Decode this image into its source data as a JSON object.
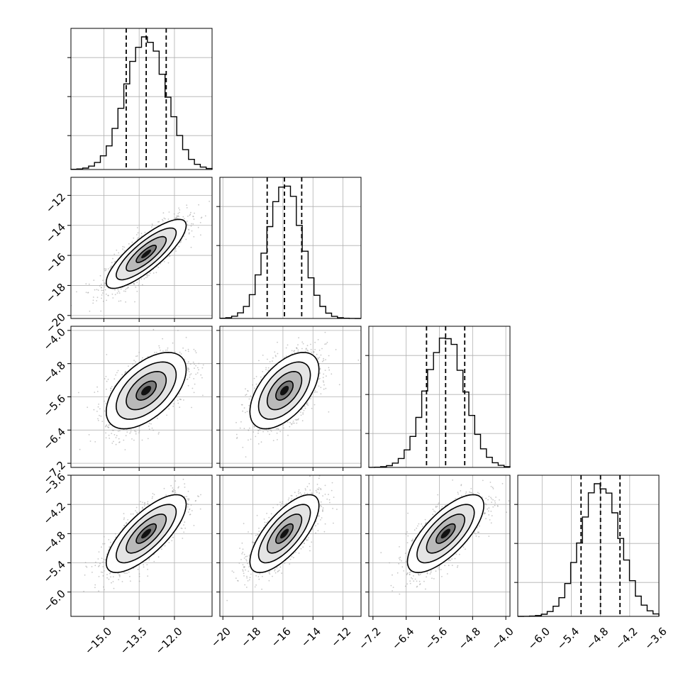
{
  "chart_data": {
    "type": "corner",
    "parameters": [
      {
        "index": 0,
        "xlim": [
          -16.4,
          -10.4
        ],
        "ticks": [
          -15.0,
          -13.5,
          -12.0
        ],
        "tick_labels": [
          "−15.0",
          "−13.5",
          "−12.0"
        ],
        "mean": -13.2,
        "sigma": 0.85,
        "quantiles": [
          -14.05,
          -13.2,
          -12.35
        ],
        "hist_bins": 24
      },
      {
        "index": 1,
        "xlim": [
          -20.2,
          -10.8
        ],
        "ticks": [
          -20,
          -18,
          -16,
          -14,
          -12
        ],
        "tick_labels": [
          "−20",
          "−18",
          "−16",
          "−14",
          "−12"
        ],
        "mean": -15.9,
        "sigma": 1.15,
        "quantiles": [
          -17.05,
          -15.9,
          -14.75
        ],
        "hist_bins": 24
      },
      {
        "index": 2,
        "xlim": [
          -7.3,
          -3.9
        ],
        "ticks": [
          -7.2,
          -6.4,
          -5.6,
          -4.8,
          -4.0
        ],
        "tick_labels": [
          "−7.2",
          "−6.4",
          "−5.6",
          "−4.8",
          "−4.0"
        ],
        "mean": -5.45,
        "sigma": 0.46,
        "quantiles": [
          -5.91,
          -5.45,
          -4.99
        ],
        "hist_bins": 24
      },
      {
        "index": 3,
        "xlim": [
          -6.5,
          -3.6
        ],
        "ticks": [
          -6.0,
          -5.4,
          -4.8,
          -4.2,
          -3.6
        ],
        "tick_labels": [
          "−6.0",
          "−5.4",
          "−4.8",
          "−4.2",
          "−3.6"
        ],
        "mean": -4.8,
        "sigma": 0.4,
        "quantiles": [
          -5.2,
          -4.8,
          -4.4
        ],
        "hist_bins": 24
      }
    ],
    "pair_correlations": [
      {
        "row": 1,
        "col": 0,
        "rho": 0.82
      },
      {
        "row": 2,
        "col": 0,
        "rho": 0.55
      },
      {
        "row": 2,
        "col": 1,
        "rho": 0.55
      },
      {
        "row": 3,
        "col": 0,
        "rho": 0.75
      },
      {
        "row": 3,
        "col": 1,
        "rho": 0.72
      },
      {
        "row": 3,
        "col": 2,
        "rho": 0.72
      }
    ],
    "contour_levels_sigma": [
      0.5,
      1.0,
      1.5,
      2.0
    ],
    "grid": true,
    "title": "",
    "xlabel": "",
    "ylabel": ""
  }
}
